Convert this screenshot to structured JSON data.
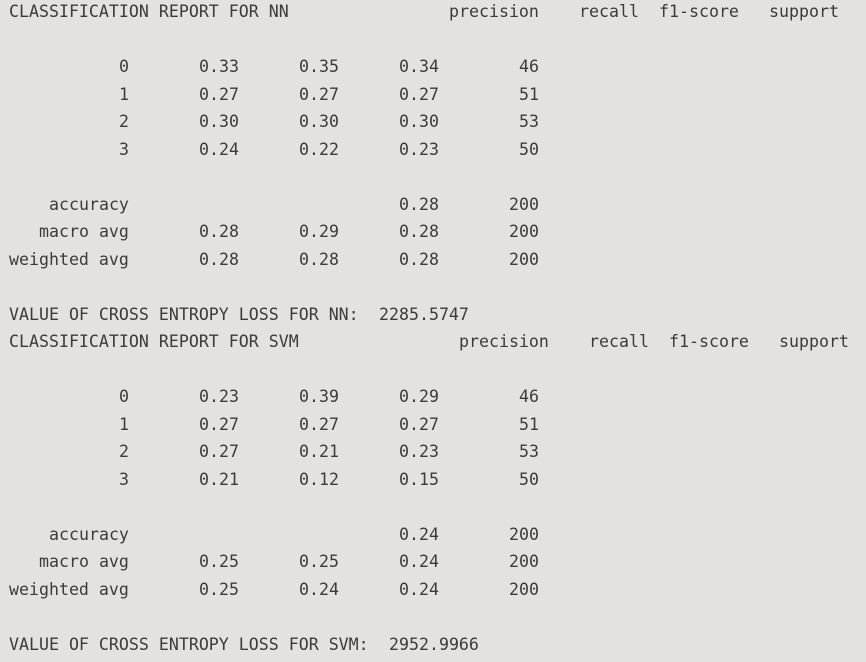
{
  "nn_report": {
    "title": "CLASSIFICATION REPORT FOR NN",
    "headers": [
      "precision",
      "recall",
      "f1-score",
      "support"
    ],
    "rows": [
      {
        "label": "0",
        "values": [
          "0.33",
          "0.35",
          "0.34",
          "46"
        ]
      },
      {
        "label": "1",
        "values": [
          "0.27",
          "0.27",
          "0.27",
          "51"
        ]
      },
      {
        "label": "2",
        "values": [
          "0.30",
          "0.30",
          "0.30",
          "53"
        ]
      },
      {
        "label": "3",
        "values": [
          "0.24",
          "0.22",
          "0.23",
          "50"
        ]
      }
    ],
    "accuracy": {
      "label": "accuracy",
      "f1": "0.28",
      "support": "200"
    },
    "macro_avg": {
      "label": "macro avg",
      "values": [
        "0.28",
        "0.29",
        "0.28",
        "200"
      ]
    },
    "weighted_avg": {
      "label": "weighted avg",
      "values": [
        "0.28",
        "0.28",
        "0.28",
        "200"
      ]
    },
    "loss_label": "VALUE OF CROSS ENTROPY LOSS FOR NN:",
    "loss_value": "2285.5747"
  },
  "svm_report": {
    "title": "CLASSIFICATION REPORT FOR SVM",
    "headers": [
      "precision",
      "recall",
      "f1-score",
      "support"
    ],
    "rows": [
      {
        "label": "0",
        "values": [
          "0.23",
          "0.39",
          "0.29",
          "46"
        ]
      },
      {
        "label": "1",
        "values": [
          "0.27",
          "0.27",
          "0.27",
          "51"
        ]
      },
      {
        "label": "2",
        "values": [
          "0.27",
          "0.21",
          "0.23",
          "53"
        ]
      },
      {
        "label": "3",
        "values": [
          "0.21",
          "0.12",
          "0.15",
          "50"
        ]
      }
    ],
    "accuracy": {
      "label": "accuracy",
      "f1": "0.24",
      "support": "200"
    },
    "macro_avg": {
      "label": "macro avg",
      "values": [
        "0.25",
        "0.25",
        "0.24",
        "200"
      ]
    },
    "weighted_avg": {
      "label": "weighted avg",
      "values": [
        "0.25",
        "0.24",
        "0.24",
        "200"
      ]
    },
    "loss_label": "VALUE OF CROSS ENTROPY LOSS FOR SVM:",
    "loss_value": "2952.9966"
  }
}
